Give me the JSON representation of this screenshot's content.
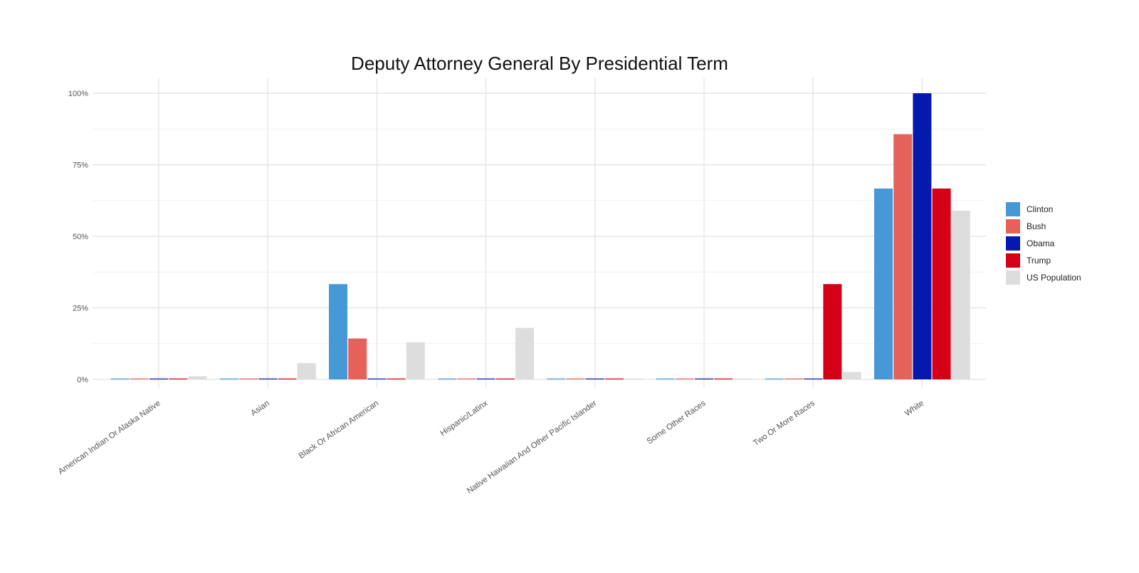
{
  "chart_data": {
    "type": "bar",
    "title": "Deputy Attorney General By Presidential Term",
    "xlabel": "",
    "ylabel": "",
    "ylim": [
      0,
      1
    ],
    "yticks": [
      {
        "value": 0,
        "label": "0%"
      },
      {
        "value": 0.25,
        "label": "25%"
      },
      {
        "value": 0.5,
        "label": "50%"
      },
      {
        "value": 0.75,
        "label": "75%"
      },
      {
        "value": 1,
        "label": "100%"
      }
    ],
    "grid": true,
    "legend_position": "right",
    "categories": [
      "American Indian Or Alaska Native",
      "Asian",
      "Black Or African American",
      "Hispanic/Latinx",
      "Native Hawaiian And Other Pacific Islander",
      "Some Other Races",
      "Two Or More Races",
      "White"
    ],
    "series": [
      {
        "name": "Clinton",
        "color": "#4698D6",
        "values": [
          0,
          0,
          0.333,
          0,
          0,
          0,
          0,
          0.667
        ]
      },
      {
        "name": "Bush",
        "color": "#E5625B",
        "values": [
          0,
          0,
          0.143,
          0,
          0,
          0,
          0,
          0.857
        ]
      },
      {
        "name": "Obama",
        "color": "#0519AE",
        "values": [
          0,
          0,
          0,
          0,
          0,
          0,
          0,
          1.0
        ]
      },
      {
        "name": "Trump",
        "color": "#D30017",
        "values": [
          0,
          0,
          0,
          0,
          0,
          0,
          0.333,
          0.667
        ]
      },
      {
        "name": "US Population",
        "color": "#DDDDDD",
        "values": [
          0.011,
          0.057,
          0.13,
          0.18,
          0.002,
          0.002,
          0.026,
          0.59
        ]
      }
    ]
  }
}
